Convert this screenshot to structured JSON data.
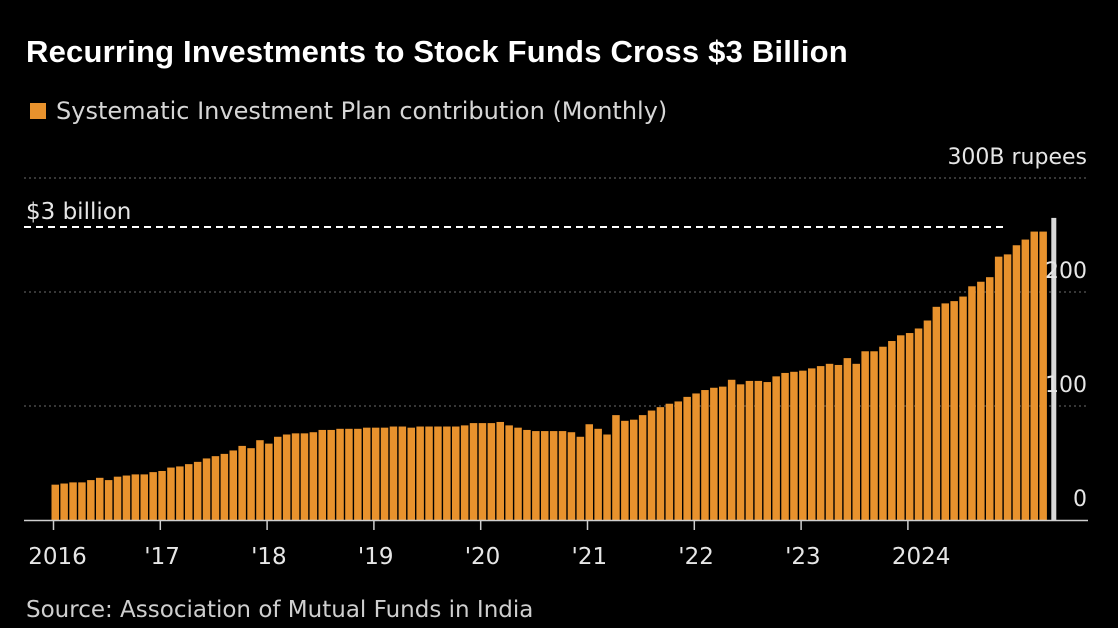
{
  "title": "Recurring Investments to Stock Funds Cross $3 Billion",
  "source": "Source: Association of Mutual Funds in India",
  "colors": {
    "background": "#000000",
    "bar": "#e8922d",
    "grid": "#6e6e6e",
    "reference_line": "#ffffff",
    "highlight_bar": "#d9d9d9"
  },
  "chart_data": {
    "type": "bar",
    "legend": [
      "Systematic Investment Plan contribution (Monthly)"
    ],
    "unit_label": "300B rupees",
    "ylim": [
      0,
      300
    ],
    "y_ticks": [
      {
        "value": 0,
        "label": "0"
      },
      {
        "value": 100,
        "label": "100"
      },
      {
        "value": 200,
        "label": "200"
      },
      {
        "value": 300,
        "label": "300B rupees"
      }
    ],
    "x_ticks": [
      "2016",
      "'17",
      "'18",
      "'19",
      "'20",
      "'21",
      "'22",
      "'23",
      "2024"
    ],
    "grid": true,
    "reference_line": {
      "value": 257,
      "label": "$3 billion",
      "style": "dashed"
    },
    "series": [
      {
        "name": "Systematic Investment Plan contribution (Monthly)",
        "start": "2016-01",
        "values": [
          31,
          32,
          33,
          33,
          35,
          37,
          35,
          38,
          39,
          40,
          40,
          42,
          43,
          46,
          47,
          49,
          51,
          54,
          56,
          58,
          61,
          65,
          63,
          70,
          67,
          73,
          75,
          76,
          76,
          77,
          79,
          79,
          80,
          80,
          80,
          81,
          81,
          81,
          82,
          82,
          81,
          82,
          82,
          82,
          82,
          82,
          83,
          85,
          85,
          85,
          86,
          83,
          81,
          79,
          78,
          78,
          78,
          78,
          77,
          73,
          84,
          80,
          75,
          92,
          87,
          88,
          92,
          96,
          99,
          102,
          104,
          108,
          111,
          114,
          116,
          117,
          123,
          119,
          122,
          122,
          121,
          126,
          129,
          130,
          131,
          133,
          135,
          137,
          136,
          142,
          137,
          148,
          148,
          152,
          157,
          162,
          164,
          168,
          175,
          187,
          190,
          192,
          196,
          205,
          209,
          213,
          231,
          233,
          241,
          246,
          253,
          253,
          265
        ],
        "highlight_last": true
      }
    ]
  }
}
